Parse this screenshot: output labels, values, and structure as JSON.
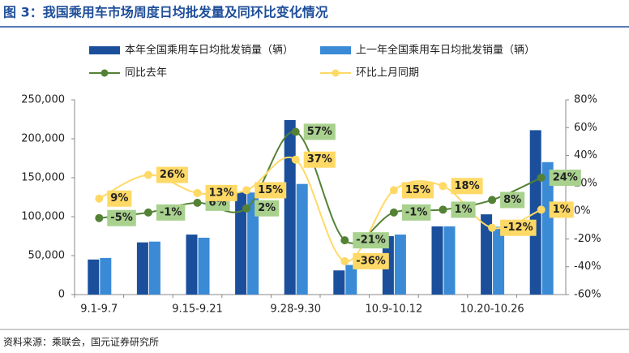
{
  "chart_data": {
    "type": "bar",
    "title": "图 3：我国乘用车市场周度日均批发量及同环比变化情况",
    "source": "资料来源：乘联会，国元证券研究所",
    "categories": [
      "9.1-9.7",
      null,
      "9.15-9.21",
      null,
      "9.28-9.30",
      null,
      "10.9-10.12",
      null,
      "10.20-10.26",
      null
    ],
    "series": [
      {
        "name": "本年全国乘用车日均批发销量（辆）",
        "type": "bar",
        "color": "#1b4f9c",
        "values": [
          45000,
          67000,
          77000,
          131000,
          224000,
          31000,
          75000,
          87500,
          103000,
          211000
        ]
      },
      {
        "name": "上一年全国乘用车日均批发销量（辆）",
        "type": "bar",
        "color": "#3a8ad6",
        "values": [
          47000,
          68000,
          73000,
          131000,
          142000,
          38000,
          77000,
          87500,
          87000,
          170000
        ]
      },
      {
        "name": "同比去年",
        "type": "line",
        "axis": "y2",
        "color": "#548235",
        "label_color": "#a9d18e",
        "values": [
          -5,
          -1,
          6,
          2,
          57,
          -21,
          -1,
          1,
          8,
          24
        ],
        "value_labels": [
          "-5%",
          "-1%",
          "6%",
          "2%",
          "57%",
          "-21%",
          "-1%",
          "1%",
          "8%",
          "24%"
        ]
      },
      {
        "name": "环比上月同期",
        "type": "line",
        "axis": "y2",
        "color": "#ffd966",
        "label_color": "#ffd966",
        "values": [
          9,
          26,
          13,
          15,
          37,
          -36,
          15,
          18,
          -12,
          1
        ],
        "value_labels": [
          "9%",
          "26%",
          "13%",
          "15%",
          "37%",
          "-36%",
          "15%",
          "18%",
          "-12%",
          "1%"
        ]
      }
    ],
    "ylim": [
      0,
      250000
    ],
    "yticks": [
      0,
      {
        "value": 50000,
        "label": "50,000"
      },
      {
        "value": 100000,
        "label": "100,000"
      },
      {
        "value": 150000,
        "label": "150,000"
      },
      {
        "value": 200000,
        "label": "200,000"
      },
      {
        "value": 250000,
        "label": "250,000"
      }
    ],
    "y2lim": [
      -60,
      80
    ],
    "y2ticks": [
      {
        "value": -60,
        "label": "-60%"
      },
      {
        "value": -40,
        "label": "-40%"
      },
      {
        "value": -20,
        "label": "-20%"
      },
      {
        "value": 0,
        "label": "0%"
      },
      {
        "value": 20,
        "label": "20%"
      },
      {
        "value": 40,
        "label": "40%"
      },
      {
        "value": 60,
        "label": "60%"
      },
      {
        "value": 80,
        "label": "80%"
      }
    ]
  }
}
